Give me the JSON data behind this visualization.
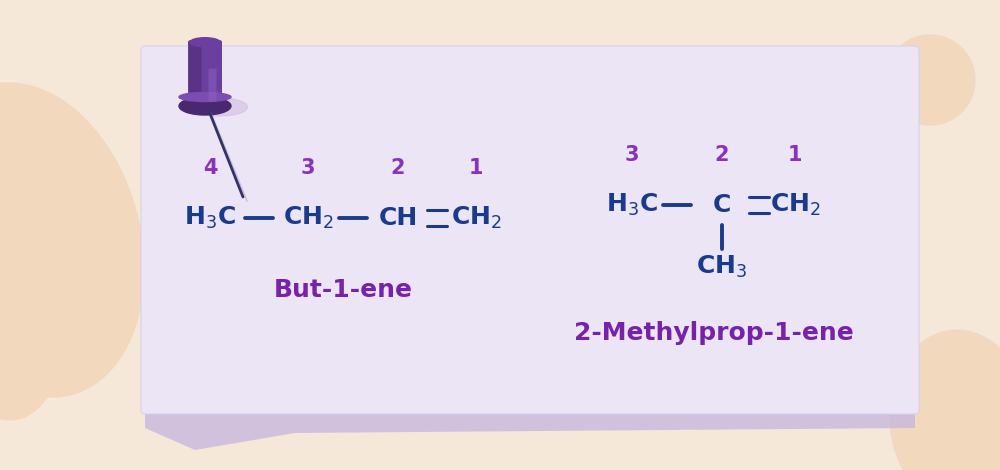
{
  "background_color": "#f5e8d8",
  "note_color": "#ece5f5",
  "note_shadow_color": "#c8b8e0",
  "formula_color": "#1a3a8c",
  "label_color": "#8833bb",
  "name_color": "#7722aa",
  "pin_body_color": "#7744aa",
  "pin_top_color": "#6633aa",
  "pin_dark_color": "#4422880",
  "pin_needle_color": "#4422880",
  "blob_color": "#f2d9be",
  "compound1_name": "But-1-ene",
  "compound2_name": "2-Methylprop-1-ene",
  "figsize": [
    10.0,
    4.7
  ],
  "dpi": 100
}
